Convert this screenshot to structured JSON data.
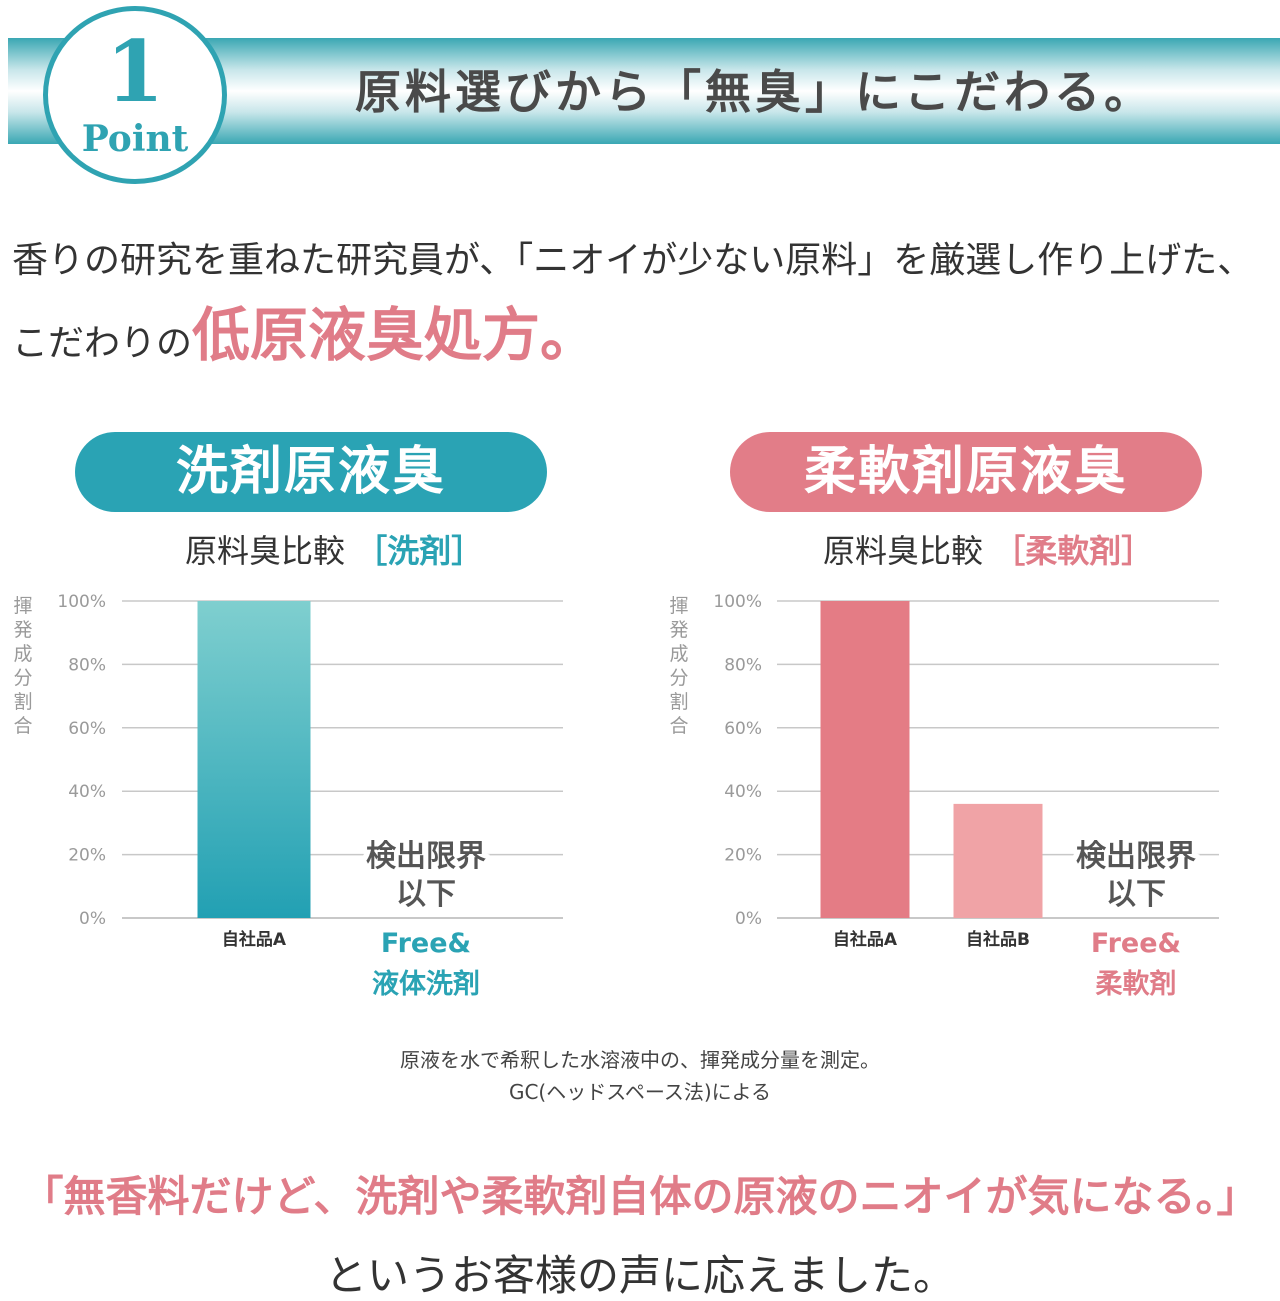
{
  "header": {
    "point_number": "1",
    "point_label": "Point",
    "title": "原料選びから「無臭」にこだわる。"
  },
  "intro": {
    "line1": "香りの研究を重ねた研究員が、「ニオイが少ない原料」を厳選し作り上げた、",
    "line2_prefix": "こだわりの",
    "line2_accent": "低原液臭処方。"
  },
  "colors": {
    "teal": "#2aa3b4",
    "pink": "#e07c88",
    "teal_bar_top": "#7fcfcf",
    "teal_bar_bottom": "#22a0b3",
    "pink_bar_a": "#e47c85",
    "pink_bar_b": "#f0a3a6",
    "grid": "#c8c8c8"
  },
  "sections": [
    {
      "pill": "洗剤原液臭",
      "subtitle_main": "原料臭比較",
      "subtitle_bracket": "［洗剤］"
    },
    {
      "pill": "柔軟剤原液臭",
      "subtitle_main": "原料臭比較",
      "subtitle_bracket": "［柔軟剤］"
    }
  ],
  "chart_data": [
    {
      "type": "bar",
      "ylabel": "揮発成分割合",
      "ylim": [
        0,
        100
      ],
      "yticks": [
        "0%",
        "20%",
        "40%",
        "60%",
        "80%",
        "100%"
      ],
      "grid": true,
      "categories": [
        "自社品A",
        "Free&\n液体洗剤"
      ],
      "values": [
        100,
        0
      ],
      "annotation": "検出限界\n以下",
      "highlight_category": "Free&\n液体洗剤",
      "bar_style": "teal"
    },
    {
      "type": "bar",
      "ylabel": "揮発成分割合",
      "ylim": [
        0,
        100
      ],
      "yticks": [
        "0%",
        "20%",
        "40%",
        "60%",
        "80%",
        "100%"
      ],
      "grid": true,
      "categories": [
        "自社品A",
        "自社品B",
        "Free&\n柔軟剤"
      ],
      "values": [
        100,
        36,
        0
      ],
      "annotation": "検出限界\n以下",
      "highlight_category": "Free&\n柔軟剤",
      "bar_style": "pink"
    }
  ],
  "footnote": {
    "line1": "原液を水で希釈した水溶液中の、揮発成分量を測定。",
    "line2": "GC(ヘッドスペース法)による"
  },
  "quote": "「無香料だけど、洗剤や柔軟剤自体の原液のニオイが気になる。」",
  "closing": "というお客様の声に応えました。"
}
